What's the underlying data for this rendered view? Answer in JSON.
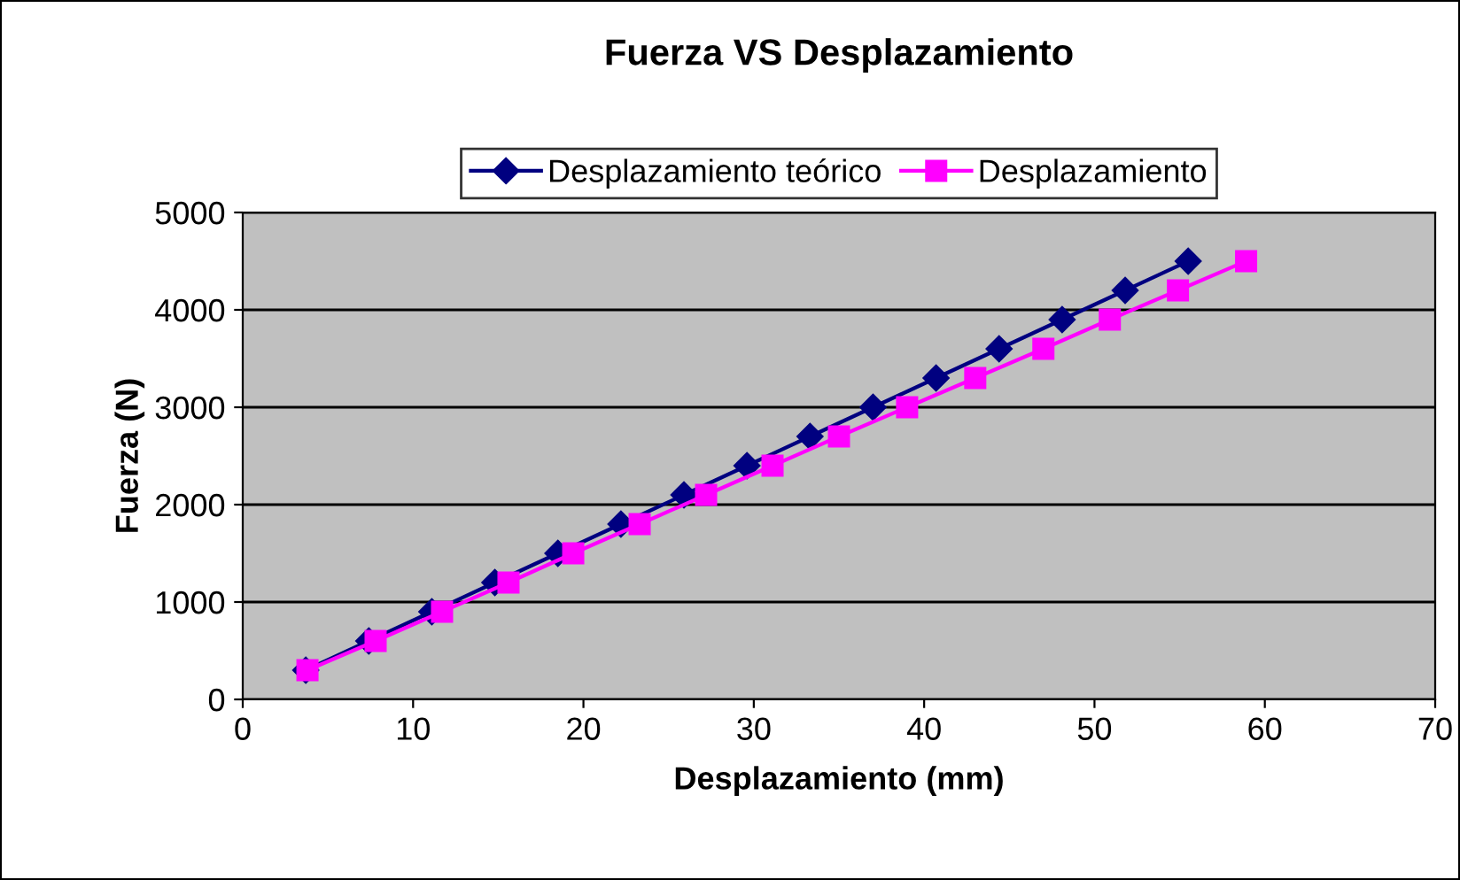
{
  "chart_data": {
    "type": "line",
    "title": "Fuerza VS Desplazamiento",
    "xlabel": "Desplazamiento (mm)",
    "ylabel": "Fuerza (N)",
    "xlim": [
      0,
      70
    ],
    "xticks": [
      0,
      10,
      20,
      30,
      40,
      50,
      60,
      70
    ],
    "ylim": [
      0,
      5000
    ],
    "yticks": [
      0,
      1000,
      2000,
      3000,
      4000,
      5000
    ],
    "grid": "y",
    "legend": "top",
    "series": [
      {
        "name": "Desplazamiento teórico",
        "color": "#000080",
        "marker": "diamond",
        "x": [
          3.7,
          7.4,
          11.1,
          14.8,
          18.5,
          22.2,
          25.9,
          29.6,
          33.3,
          37.0,
          40.7,
          44.4,
          48.1,
          51.8,
          55.5
        ],
        "values": [
          300,
          600,
          900,
          1200,
          1500,
          1800,
          2100,
          2400,
          2700,
          3000,
          3300,
          3600,
          3900,
          4200,
          4500
        ]
      },
      {
        "name": "Desplazamiento",
        "color": "#ff00ff",
        "marker": "square",
        "x": [
          3.8,
          7.8,
          11.7,
          15.6,
          19.4,
          23.3,
          27.2,
          31.1,
          35.0,
          39.0,
          43.0,
          47.0,
          50.9,
          54.9,
          58.9
        ],
        "values": [
          300,
          600,
          900,
          1200,
          1500,
          1800,
          2100,
          2400,
          2700,
          3000,
          3300,
          3600,
          3900,
          4200,
          4500
        ]
      }
    ]
  }
}
